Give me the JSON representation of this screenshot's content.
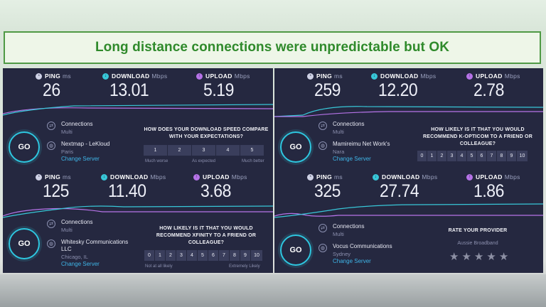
{
  "banner": {
    "title": "Long distance connections were unpredictable but OK"
  },
  "colors": {
    "accent_green": "#2f8a2b",
    "panel_bg": "#252840",
    "download": "#38c7d8",
    "upload": "#b673e8",
    "link": "#3fb6e8"
  },
  "labels": {
    "ping": "PING",
    "download": "DOWNLOAD",
    "upload": "UPLOAD",
    "ping_unit": "ms",
    "speed_unit": "Mbps",
    "go": "GO",
    "connections": "Connections",
    "change_server": "Change Server"
  },
  "tests": [
    {
      "ping": "26",
      "download": "13.01",
      "upload": "5.19",
      "connection_mode": "Multi",
      "isp": "Nextmap - LeKloud",
      "location": "Paris",
      "question": "HOW DOES YOUR DOWNLOAD SPEED COMPARE WITH YOUR EXPECTATIONS?",
      "scale": [
        "1",
        "2",
        "3",
        "4",
        "5"
      ],
      "scale_low": "Much worse",
      "scale_mid": "As expected",
      "scale_high": "Much better"
    },
    {
      "ping": "259",
      "download": "12.20",
      "upload": "2.78",
      "connection_mode": "Multi",
      "isp": "Mamireimu Net Work's",
      "location": "Nara",
      "question": "HOW LIKELY IS IT THAT YOU WOULD RECOMMEND K-OPTICOM TO A FRIEND OR COLLEAGUE?",
      "scale": [
        "0",
        "1",
        "2",
        "3",
        "4",
        "5",
        "6",
        "7",
        "8",
        "9",
        "10"
      ]
    },
    {
      "ping": "125",
      "download": "11.40",
      "upload": "3.68",
      "connection_mode": "Multi",
      "isp": "Whitesky Communications LLC",
      "location": "Chicago, IL",
      "question": "HOW LIKELY IS IT THAT YOU WOULD RECOMMEND XFINITY TO A FRIEND OR COLLEAGUE?",
      "scale": [
        "0",
        "1",
        "2",
        "3",
        "4",
        "5",
        "6",
        "7",
        "8",
        "9",
        "10"
      ],
      "scale_low": "Not at all likely",
      "scale_high": "Extremely Likely"
    },
    {
      "ping": "325",
      "download": "27.74",
      "upload": "1.86",
      "connection_mode": "Multi",
      "isp": "Vocus Communications",
      "location": "Sydney",
      "question": "RATE YOUR PROVIDER",
      "provider": "Aussie Broadband",
      "rating_stars": 5
    }
  ]
}
